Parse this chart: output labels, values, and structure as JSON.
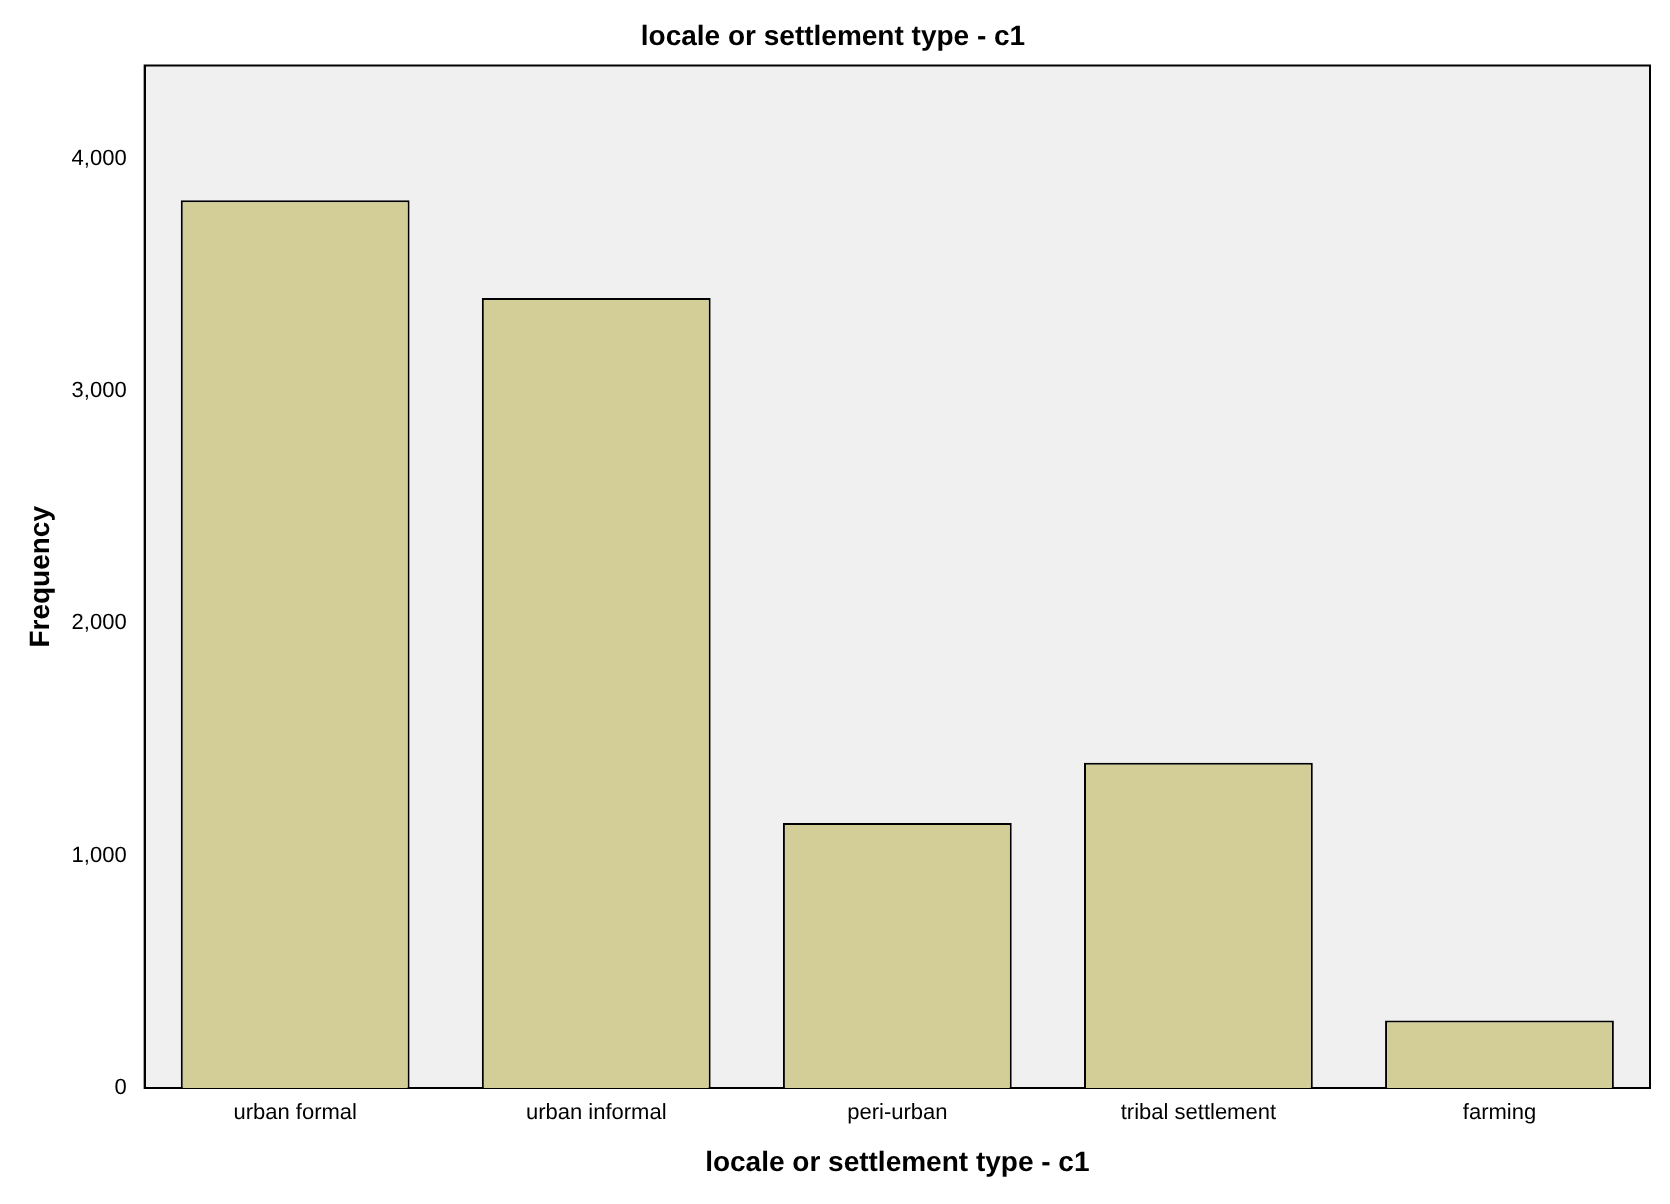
{
  "chart_data": {
    "type": "bar",
    "title": "locale or settlement type - c1",
    "xlabel": "locale or settlement type - c1",
    "ylabel": "Frequency",
    "categories": [
      "urban formal",
      "urban informal",
      "peri-urban",
      "tribal settlement",
      "farming"
    ],
    "values": [
      3820,
      3400,
      1140,
      1400,
      290
    ],
    "color": "#d3ce97",
    "ylim": [
      0,
      4400
    ],
    "yticks": [
      {
        "value": 0,
        "label": "0"
      },
      {
        "value": 1000,
        "label": "1,000"
      },
      {
        "value": 2000,
        "label": "2,000"
      },
      {
        "value": 3000,
        "label": "3,000"
      },
      {
        "value": 4000,
        "label": "4,000"
      }
    ],
    "grid": false,
    "legend": false
  }
}
